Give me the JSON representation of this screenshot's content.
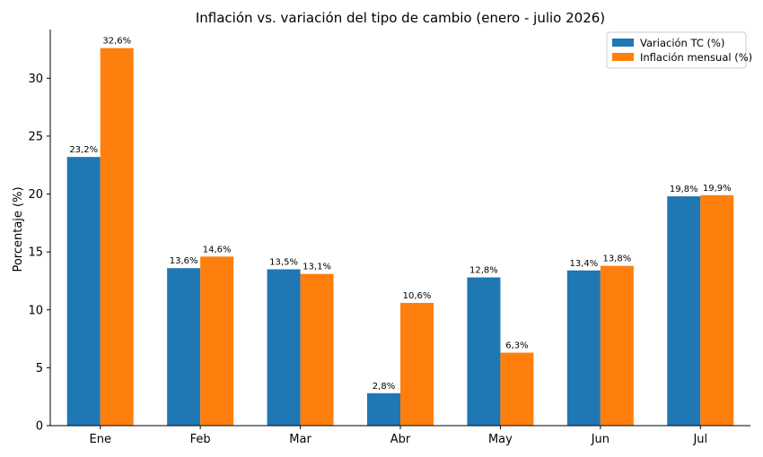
{
  "chart_data": {
    "type": "bar",
    "title": "Inflación vs. variación del tipo de cambio (enero - julio 2026)",
    "xlabel": "",
    "ylabel": "Porcentaje (%)",
    "categories": [
      "Ene",
      "Feb",
      "Mar",
      "Abr",
      "May",
      "Jun",
      "Jul"
    ],
    "series": [
      {
        "name": "Variación TC (%)",
        "color": "#1f77b4",
        "values": [
          23.2,
          13.6,
          13.5,
          2.8,
          12.8,
          13.4,
          19.8
        ],
        "labels": [
          "23,2%",
          "13,6%",
          "13,5%",
          "2,8%",
          "12,8%",
          "13,4%",
          "19,8%"
        ]
      },
      {
        "name": "Inflación mensual (%)",
        "color": "#ff7f0e",
        "values": [
          32.6,
          14.6,
          13.1,
          10.6,
          6.3,
          13.8,
          19.9
        ],
        "labels": [
          "32,6%",
          "14,6%",
          "13,1%",
          "10,6%",
          "6,3%",
          "13,8%",
          "19,9%"
        ]
      }
    ],
    "ylim": [
      0,
      34.2
    ],
    "yticks": [
      "0",
      "5",
      "10",
      "15",
      "20",
      "25",
      "30"
    ],
    "grid": false,
    "legend_position": "top-right"
  }
}
